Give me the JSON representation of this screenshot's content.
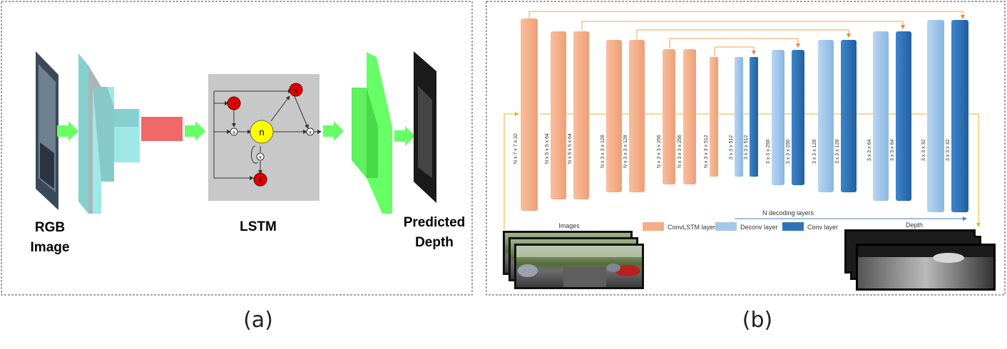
{
  "panel_a": {
    "input_label_1": "RGB",
    "input_label_2": "Image",
    "lstm_label": "LSTM",
    "output_label_1": "Predicted",
    "output_label_2": "Depth",
    "gate_i": "i",
    "gate_o": "o",
    "gate_f": "f",
    "cell": "n",
    "mult": "x",
    "caption": "(a)"
  },
  "panel_b": {
    "images_label": "Images",
    "depth_label": "Depth",
    "decoding_label": "N decoding layers",
    "legend": {
      "convlstm": "ConvLSTM layer",
      "deconv": "Deconv layer",
      "conv": "Conv layer"
    },
    "layer_labels": [
      "N x 7 x 7 x 32",
      "N x 5 x 5 x 64",
      "N x 5 x 5 x 64",
      "N x 3 x 3 x 128",
      "N x 3 x 3 x 128",
      "N x 3 x 3 x 256",
      "N x 3 x 3 x 256",
      "N x 3 x 3 x 512",
      "3 x 3 x 512",
      "3 x 3 x 512",
      "3 x 3 x 256",
      "3 x 3 x 256",
      "3 x 3 x 128",
      "3 x 3 x 128",
      "3 x 3 x 64",
      "3 x 3 x 64",
      "3 x 3 x 32",
      "3 x 3 x 32"
    ],
    "caption": "(b)"
  },
  "colors": {
    "convlstm": "#f4ad87",
    "deconv": "#a4c8ea",
    "conv": "#2e73b8",
    "arrow_green": "#66ff66",
    "cnn_block": "#99e6e6",
    "red_block": "#f06868",
    "lstm_bg": "#c8c8c8",
    "gate_red": "#e00000",
    "cell_yellow": "#ffff00",
    "skip_arrow": "#f0a050"
  }
}
